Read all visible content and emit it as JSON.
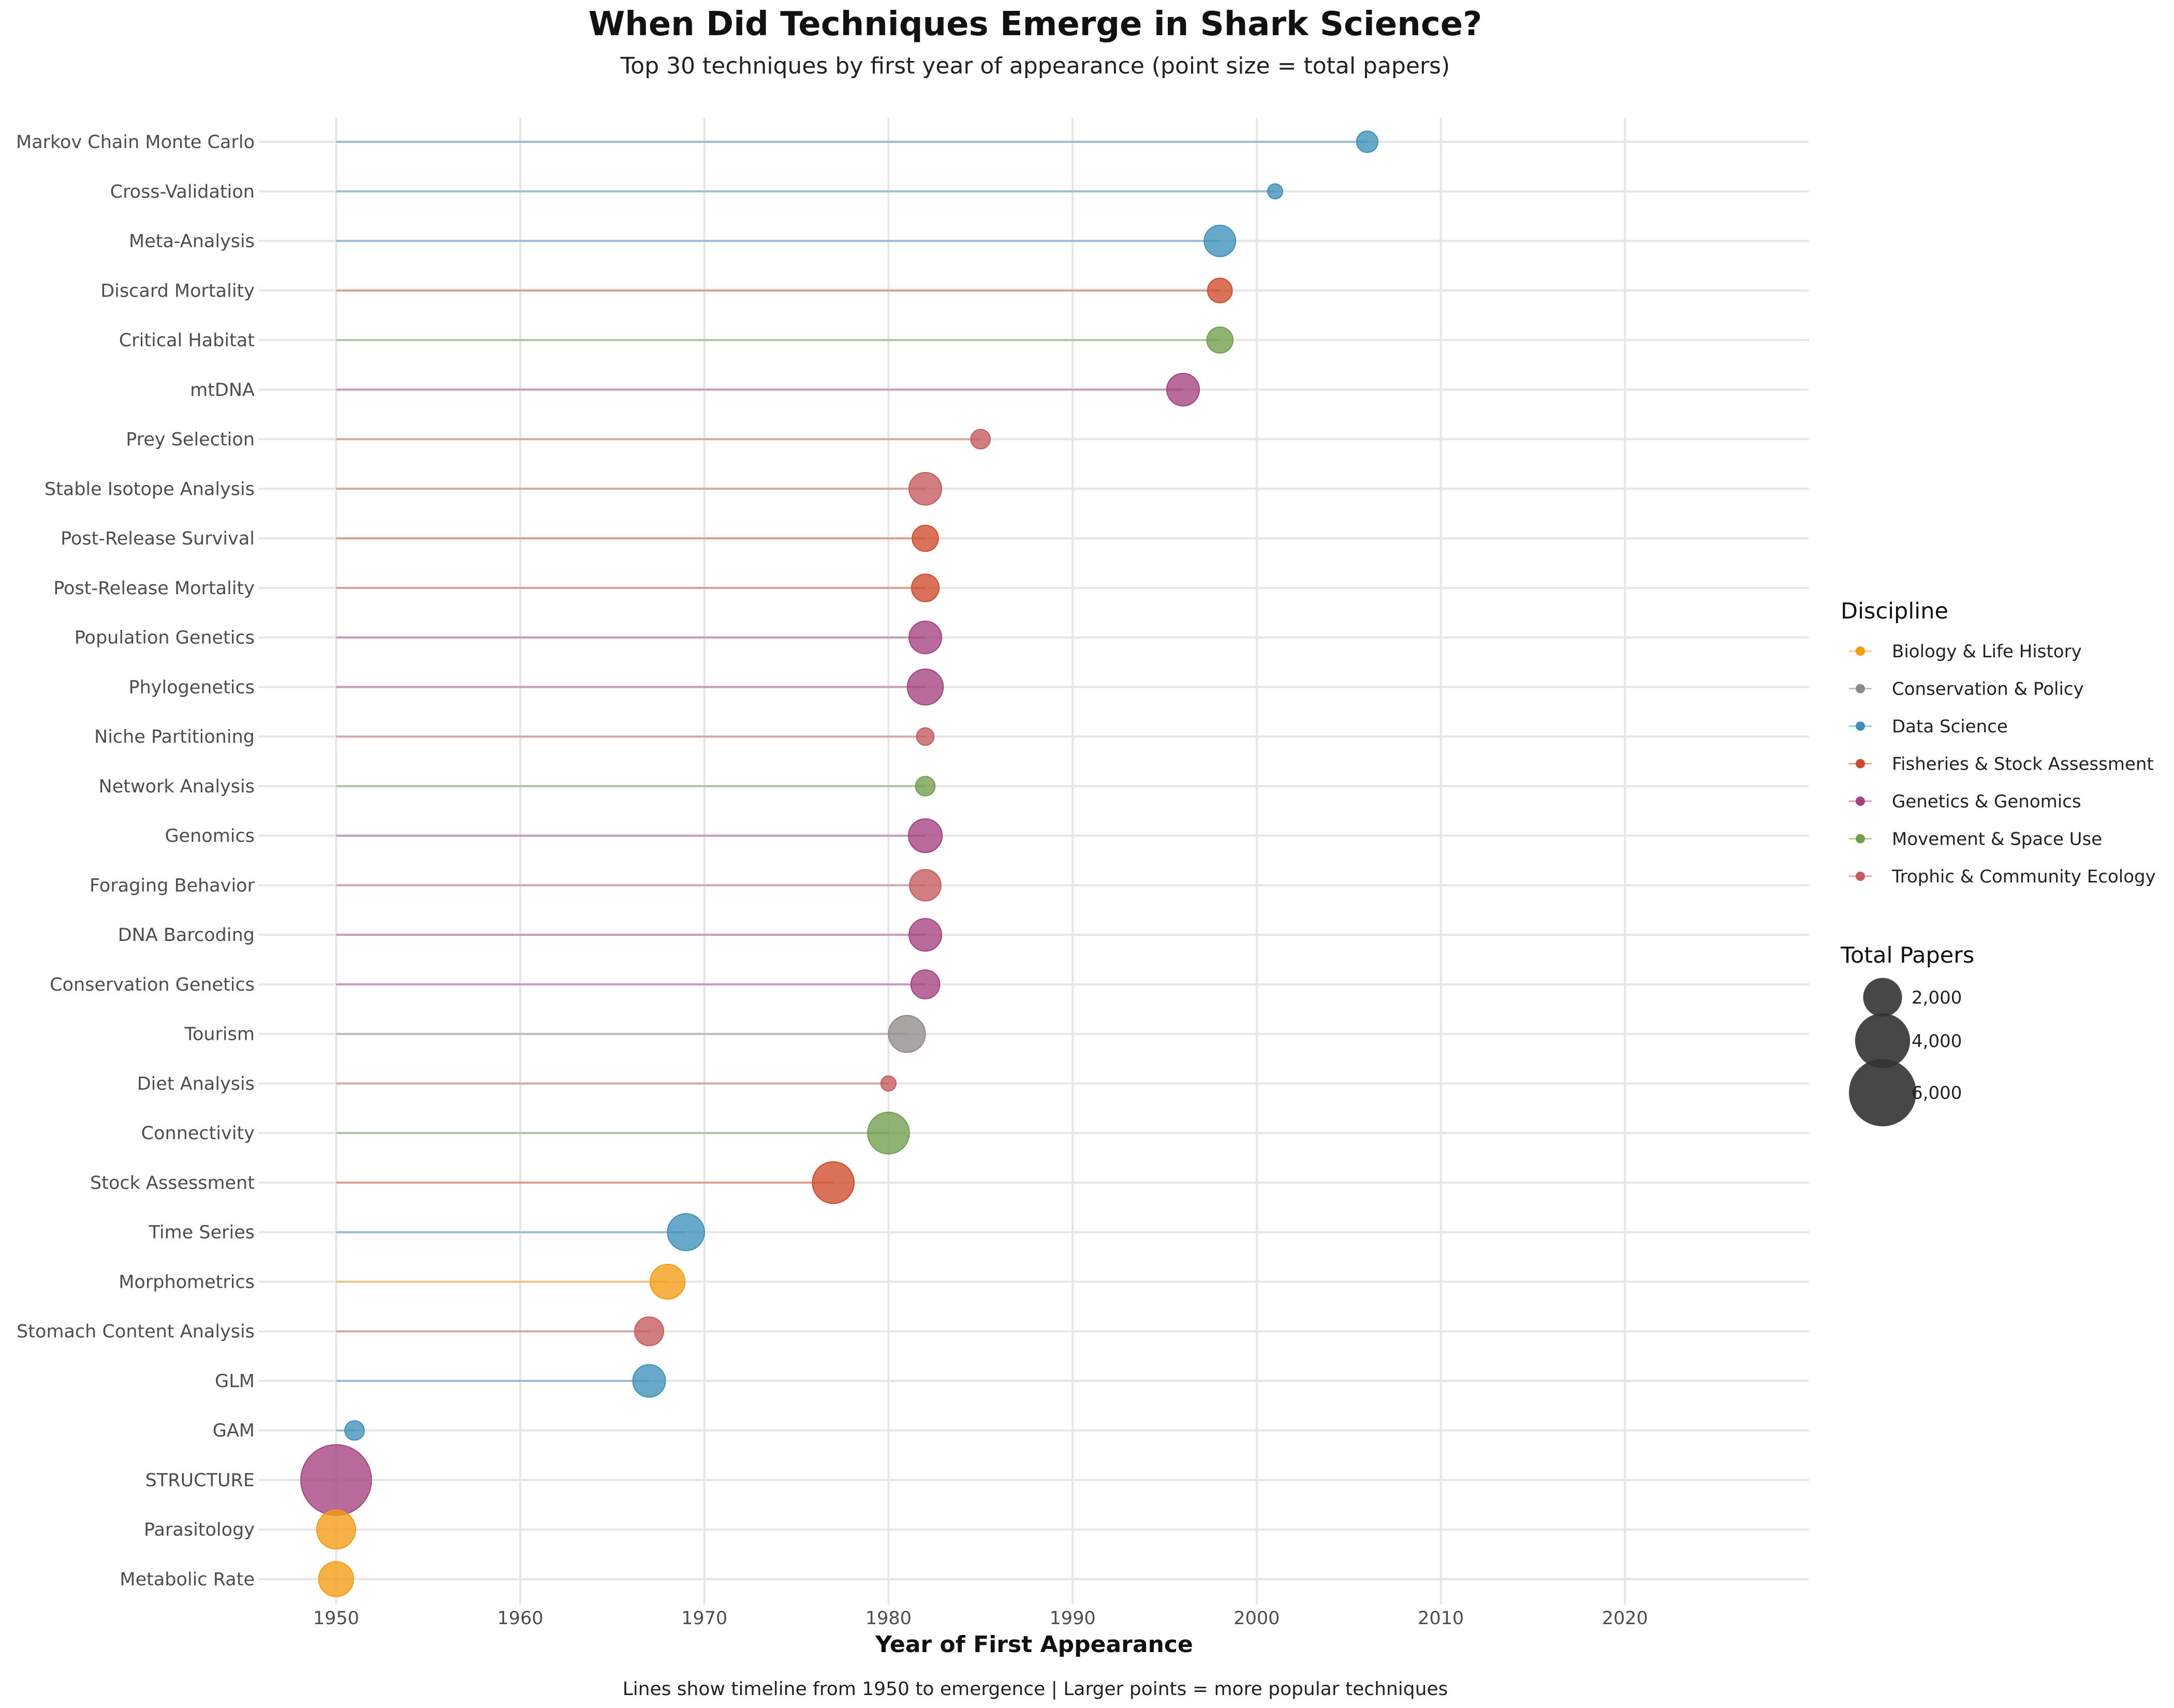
{
  "chart_data": {
    "type": "lollipop",
    "title": "When Did Techniques Emerge in Shark Science?",
    "subtitle": "Top 30 techniques by first year of appearance (point size = total papers)",
    "xlabel": "Year of First Appearance",
    "ylabel": "",
    "caption": "Lines show timeline from 1950 to emergence | Larger points = more popular techniques",
    "xlim": [
      1945.8,
      2030
    ],
    "x_ticks": [
      1950,
      1960,
      1970,
      1980,
      1990,
      2000,
      2010,
      2020
    ],
    "line_start": 1950,
    "grid": true,
    "legend_position": "right",
    "color_legend": {
      "title": "Discipline",
      "entries": [
        {
          "name": "Biology & Life History",
          "color": "#F39C12"
        },
        {
          "name": "Conservation & Policy",
          "color": "#8E8A86"
        },
        {
          "name": "Data Science",
          "color": "#3D8FB8"
        },
        {
          "name": "Fisheries & Stock Assessment",
          "color": "#CF4A2A"
        },
        {
          "name": "Genetics & Genomics",
          "color": "#A5417F"
        },
        {
          "name": "Movement & Space Use",
          "color": "#6F9E4C"
        },
        {
          "name": "Trophic & Community Ecology",
          "color": "#C45A5E"
        }
      ]
    },
    "size_legend": {
      "title": "Total Papers",
      "entries": [
        {
          "label": "2,000",
          "value": 2000
        },
        {
          "label": "4,000",
          "value": 4000
        },
        {
          "label": "6,000",
          "value": 6000
        }
      ]
    },
    "points": [
      {
        "technique": "Markov Chain Monte Carlo",
        "year": 2006,
        "papers": 600,
        "discipline": "Data Science"
      },
      {
        "technique": "Cross-Validation",
        "year": 2001,
        "papers": 300,
        "discipline": "Data Science"
      },
      {
        "technique": "Meta-Analysis",
        "year": 1998,
        "papers": 1300,
        "discipline": "Data Science"
      },
      {
        "technique": "Discard Mortality",
        "year": 1998,
        "papers": 800,
        "discipline": "Fisheries & Stock Assessment"
      },
      {
        "technique": "Critical Habitat",
        "year": 1998,
        "papers": 900,
        "discipline": "Movement & Space Use"
      },
      {
        "technique": "mtDNA",
        "year": 1996,
        "papers": 1400,
        "discipline": "Genetics & Genomics"
      },
      {
        "technique": "Prey Selection",
        "year": 1985,
        "papers": 500,
        "discipline": "Trophic & Community Ecology"
      },
      {
        "technique": "Stable Isotope Analysis",
        "year": 1982,
        "papers": 1400,
        "discipline": "Trophic & Community Ecology"
      },
      {
        "technique": "Post-Release Survival",
        "year": 1982,
        "papers": 900,
        "discipline": "Fisheries & Stock Assessment"
      },
      {
        "technique": "Post-Release Mortality",
        "year": 1982,
        "papers": 1000,
        "discipline": "Fisheries & Stock Assessment"
      },
      {
        "technique": "Population Genetics",
        "year": 1982,
        "papers": 1400,
        "discipline": "Genetics & Genomics"
      },
      {
        "technique": "Phylogenetics",
        "year": 1982,
        "papers": 1700,
        "discipline": "Genetics & Genomics"
      },
      {
        "technique": "Niche Partitioning",
        "year": 1982,
        "papers": 400,
        "discipline": "Trophic & Community Ecology"
      },
      {
        "technique": "Network Analysis",
        "year": 1982,
        "papers": 500,
        "discipline": "Movement & Space Use"
      },
      {
        "technique": "Genomics",
        "year": 1982,
        "papers": 1500,
        "discipline": "Genetics & Genomics"
      },
      {
        "technique": "Foraging Behavior",
        "year": 1982,
        "papers": 1300,
        "discipline": "Trophic & Community Ecology"
      },
      {
        "technique": "DNA Barcoding",
        "year": 1982,
        "papers": 1400,
        "discipline": "Genetics & Genomics"
      },
      {
        "technique": "Conservation Genetics",
        "year": 1982,
        "papers": 1100,
        "discipline": "Genetics & Genomics"
      },
      {
        "technique": "Tourism",
        "year": 1981,
        "papers": 1800,
        "discipline": "Conservation & Policy"
      },
      {
        "technique": "Diet Analysis",
        "year": 1980,
        "papers": 300,
        "discipline": "Trophic & Community Ecology"
      },
      {
        "technique": "Connectivity",
        "year": 1980,
        "papers": 2300,
        "discipline": "Movement & Space Use"
      },
      {
        "technique": "Stock Assessment",
        "year": 1977,
        "papers": 2300,
        "discipline": "Fisheries & Stock Assessment"
      },
      {
        "technique": "Time Series",
        "year": 1969,
        "papers": 1800,
        "discipline": "Data Science"
      },
      {
        "technique": "Morphometrics",
        "year": 1968,
        "papers": 1600,
        "discipline": "Biology & Life History"
      },
      {
        "technique": "Stomach Content Analysis",
        "year": 1967,
        "papers": 1100,
        "discipline": "Trophic & Community Ecology"
      },
      {
        "technique": "GLM",
        "year": 1967,
        "papers": 1400,
        "discipline": "Data Science"
      },
      {
        "technique": "GAM",
        "year": 1951,
        "papers": 500,
        "discipline": "Data Science"
      },
      {
        "technique": "STRUCTURE",
        "year": 1950,
        "papers": 6600,
        "discipline": "Genetics & Genomics"
      },
      {
        "technique": "Parasitology",
        "year": 1950,
        "papers": 2000,
        "discipline": "Biology & Life History"
      },
      {
        "technique": "Metabolic Rate",
        "year": 1950,
        "papers": 1600,
        "discipline": "Biology & Life History"
      }
    ]
  }
}
